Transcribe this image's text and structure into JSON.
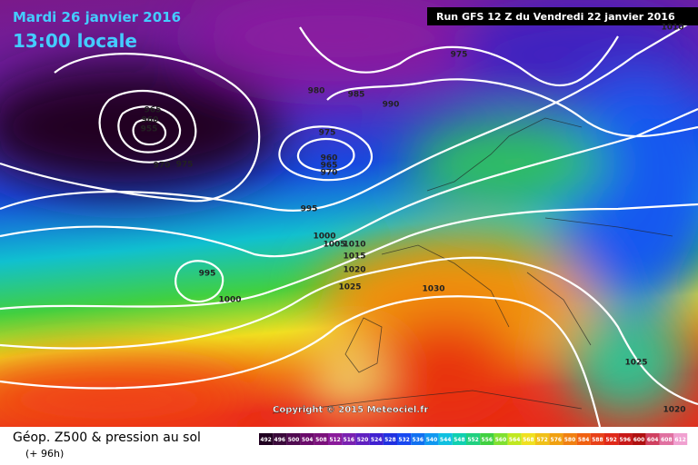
{
  "header": {
    "date": "Mardi 26 janvier 2016",
    "time": "13:00 locale",
    "run": "Run GFS 12 Z du Vendredi 22 janvier 2016"
  },
  "isobar_labels": [
    975,
    980,
    985,
    990,
    965,
    960,
    955,
    970,
    975,
    975,
    960,
    965,
    970,
    995,
    1000,
    1005,
    1010,
    1015,
    1020,
    1025,
    1030,
    995,
    1000,
    1025,
    1020,
    1010
  ],
  "copyright": "Copyright © 2015 Meteociel.fr",
  "legend": {
    "title": "Géop. Z500 & pression au sol",
    "subtitle": "(+ 96h)",
    "scale": [
      492,
      496,
      500,
      504,
      508,
      512,
      516,
      520,
      524,
      528,
      532,
      536,
      540,
      544,
      548,
      552,
      556,
      560,
      564,
      568,
      572,
      576,
      580,
      584,
      588,
      592,
      596,
      600,
      604,
      608,
      612
    ]
  }
}
